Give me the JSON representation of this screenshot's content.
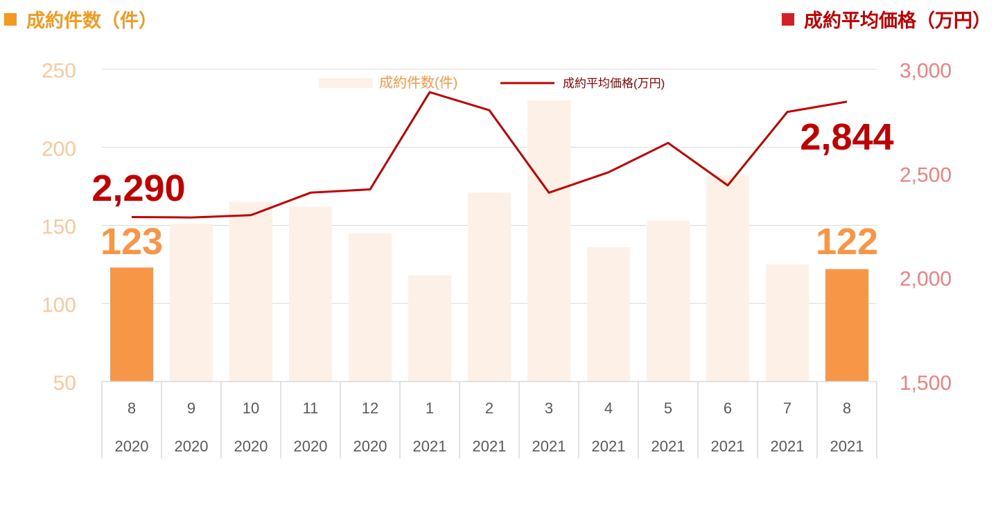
{
  "header": {
    "left_title": "成約件数（件）",
    "right_title": "成約平均価格（万円）"
  },
  "colors": {
    "left_axis": "#f9c89b",
    "right_axis": "#f08080",
    "bar_highlight": "#f79646",
    "bar_faded": "#fdf1e7",
    "line": "#c00000",
    "grid": "#d9d9d9"
  },
  "chart_data": {
    "type": "bar",
    "categories": [
      "8",
      "9",
      "10",
      "11",
      "12",
      "1",
      "2",
      "3",
      "4",
      "5",
      "6",
      "7",
      "8"
    ],
    "years": [
      "2020",
      "2020",
      "2020",
      "2020",
      "2020",
      "2021",
      "2021",
      "2021",
      "2021",
      "2021",
      "2021",
      "2021",
      "2021"
    ],
    "series": [
      {
        "name": "成約件数(件)",
        "type": "bar",
        "axis": "left",
        "values": [
          123,
          151,
          165,
          162,
          145,
          118,
          171,
          230,
          136,
          153,
          182,
          125,
          122
        ],
        "highlighted": [
          0,
          12
        ],
        "labels": {
          "0": "123",
          "12": "122"
        }
      },
      {
        "name": "成約平均価格(万円)",
        "type": "line",
        "axis": "right",
        "values": [
          2290,
          2288,
          2299,
          2407,
          2423,
          2890,
          2803,
          2407,
          2505,
          2646,
          2442,
          2795,
          2844
        ],
        "labels": {
          "0": "2,290",
          "12": "2,844"
        }
      }
    ],
    "y_left": {
      "min": 50,
      "max": 250,
      "ticks": [
        "50",
        "100",
        "150",
        "200",
        "250"
      ]
    },
    "y_right": {
      "min": 1500,
      "max": 3000,
      "ticks": [
        "1,500",
        "2,000",
        "2,500",
        "3,000"
      ]
    },
    "grid": true,
    "legend": "top-center"
  }
}
